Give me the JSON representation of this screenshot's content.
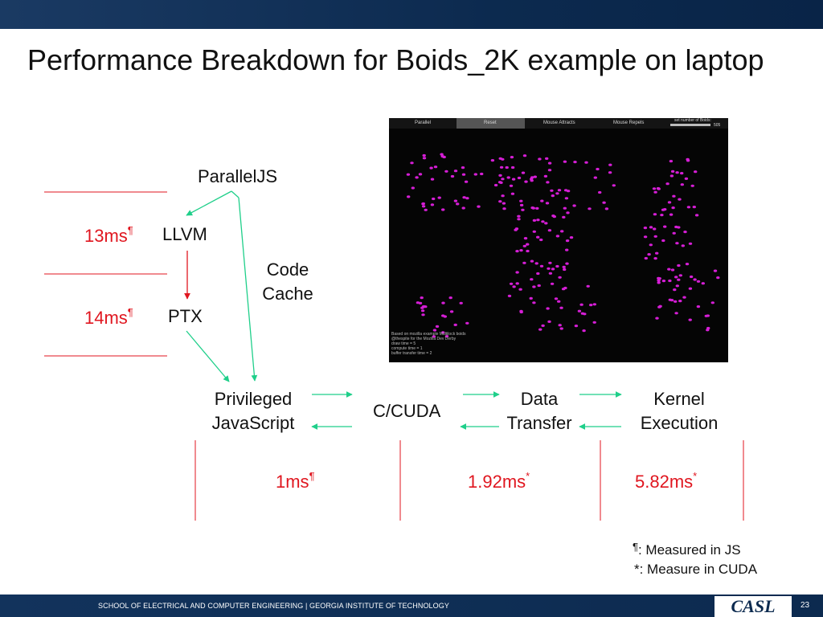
{
  "slide": {
    "title": "Performance Breakdown for Boids_2K example on laptop",
    "page_number": "23"
  },
  "diagram": {
    "nodes": {
      "paralleljs": "ParallelJS",
      "llvm": "LLVM",
      "ptx": "PTX",
      "code_cache_line1": "Code",
      "code_cache_line2": "Cache",
      "privileged_line1": "Privileged",
      "privileged_line2": "JavaScript",
      "ccuda": "C/CUDA",
      "data_transfer_line1": "Data",
      "data_transfer_line2": "Transfer",
      "kernel_line1": "Kernel",
      "kernel_line2": "Execution"
    },
    "timings": {
      "llvm_time": "13ms",
      "llvm_mark": "¶",
      "ptx_time": "14ms",
      "ptx_mark": "¶",
      "privileged_time": "1ms",
      "privileged_mark": "¶",
      "transfer_time": "1.92ms",
      "transfer_mark": "*",
      "kernel_time": "5.82ms",
      "kernel_mark": "*"
    },
    "colors": {
      "arrow_green": "#1fcf8a",
      "arrow_red": "#e0161f",
      "timing_red": "#e0161f"
    }
  },
  "screenshot": {
    "menu": {
      "parallel": "Parallel",
      "reset": "Reset",
      "mouse_attracts": "Mouse Attracts",
      "mouse_repels": "Mouse Repels",
      "set_number": "set number of Boids:",
      "count": "505"
    },
    "info_lines": "Based on mozilla example Multilock boids\n@thespite for the Mozilla Dev Derby\ndraw time = 5\ncompute time = 1\nbuffer transfer time = 2",
    "dot_color": "#d61ed6"
  },
  "footnotes": {
    "js_mark": "¶",
    "js_text": ": Measured in JS",
    "cuda_text": "*: Measure in CUDA"
  },
  "footer": {
    "school": "SCHOOL OF ELECTRICAL AND COMPUTER ENGINEERING | GEORGIA INSTITUTE OF TECHNOLOGY",
    "logo_text": "CASL"
  }
}
